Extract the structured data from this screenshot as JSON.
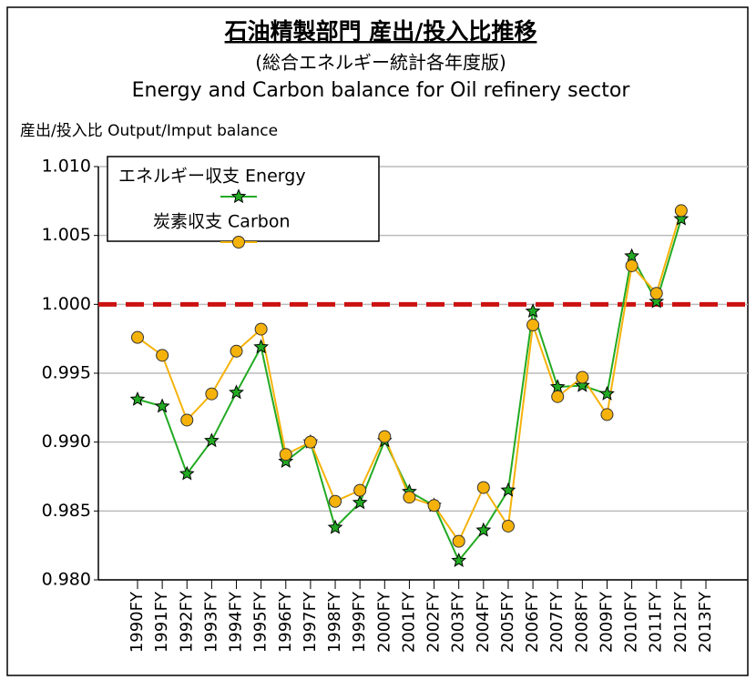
{
  "chart_data": {
    "type": "line",
    "title": "石油精製部門 産出/投入比推移",
    "subtitle": "(総合エネルギー統計各年度版)",
    "subtitle_en": "Energy and Carbon balance for Oil refinery sector",
    "ylabel": "産出/投入比 Output/Imput balance",
    "categories": [
      "1990FY",
      "1991FY",
      "1992FY",
      "1993FY",
      "1994FY",
      "1995FY",
      "1996FY",
      "1997FY",
      "1998FY",
      "1999FY",
      "2000FY",
      "2001FY",
      "2002FY",
      "2003FY",
      "2004FY",
      "2005FY",
      "2006FY",
      "2007FY",
      "2008FY",
      "2009FY",
      "2010FY",
      "2011FY",
      "2012FY",
      "2013FY"
    ],
    "series": [
      {
        "name": "エネルギー収支 Energy",
        "color": "#22aa22",
        "marker": "star",
        "values": [
          0.9931,
          0.9926,
          0.9877,
          0.9901,
          0.9936,
          0.9969,
          0.9886,
          0.99,
          0.9838,
          0.9856,
          0.9901,
          0.9864,
          0.9854,
          0.9814,
          0.9836,
          0.9865,
          0.9995,
          0.994,
          0.9941,
          0.9935,
          1.0035,
          1.0002,
          1.0062,
          null
        ]
      },
      {
        "name": "炭素収支 Carbon",
        "color": "#f5b20a",
        "marker": "circle",
        "values": [
          0.9976,
          0.9963,
          0.9916,
          0.9935,
          0.9966,
          0.9982,
          0.9891,
          0.99,
          0.9857,
          0.9865,
          0.9904,
          0.986,
          0.9854,
          0.9828,
          0.9867,
          0.9839,
          0.9985,
          0.9933,
          0.9947,
          0.992,
          1.0028,
          1.0008,
          1.0068,
          null
        ]
      }
    ],
    "reference_line": {
      "value": 1.0,
      "color": "#cc1111"
    },
    "ylim": [
      0.98,
      1.01
    ],
    "yticks": [
      {
        "value": 0.98,
        "label": "0.980"
      },
      0.985,
      {
        "value": 0.99,
        "label": "0.990"
      },
      0.995,
      {
        "value": 1.0,
        "label": "1.000"
      },
      1.005,
      {
        "value": 1.01,
        "label": "1.010"
      }
    ],
    "grid": true,
    "legend": "upper left"
  }
}
